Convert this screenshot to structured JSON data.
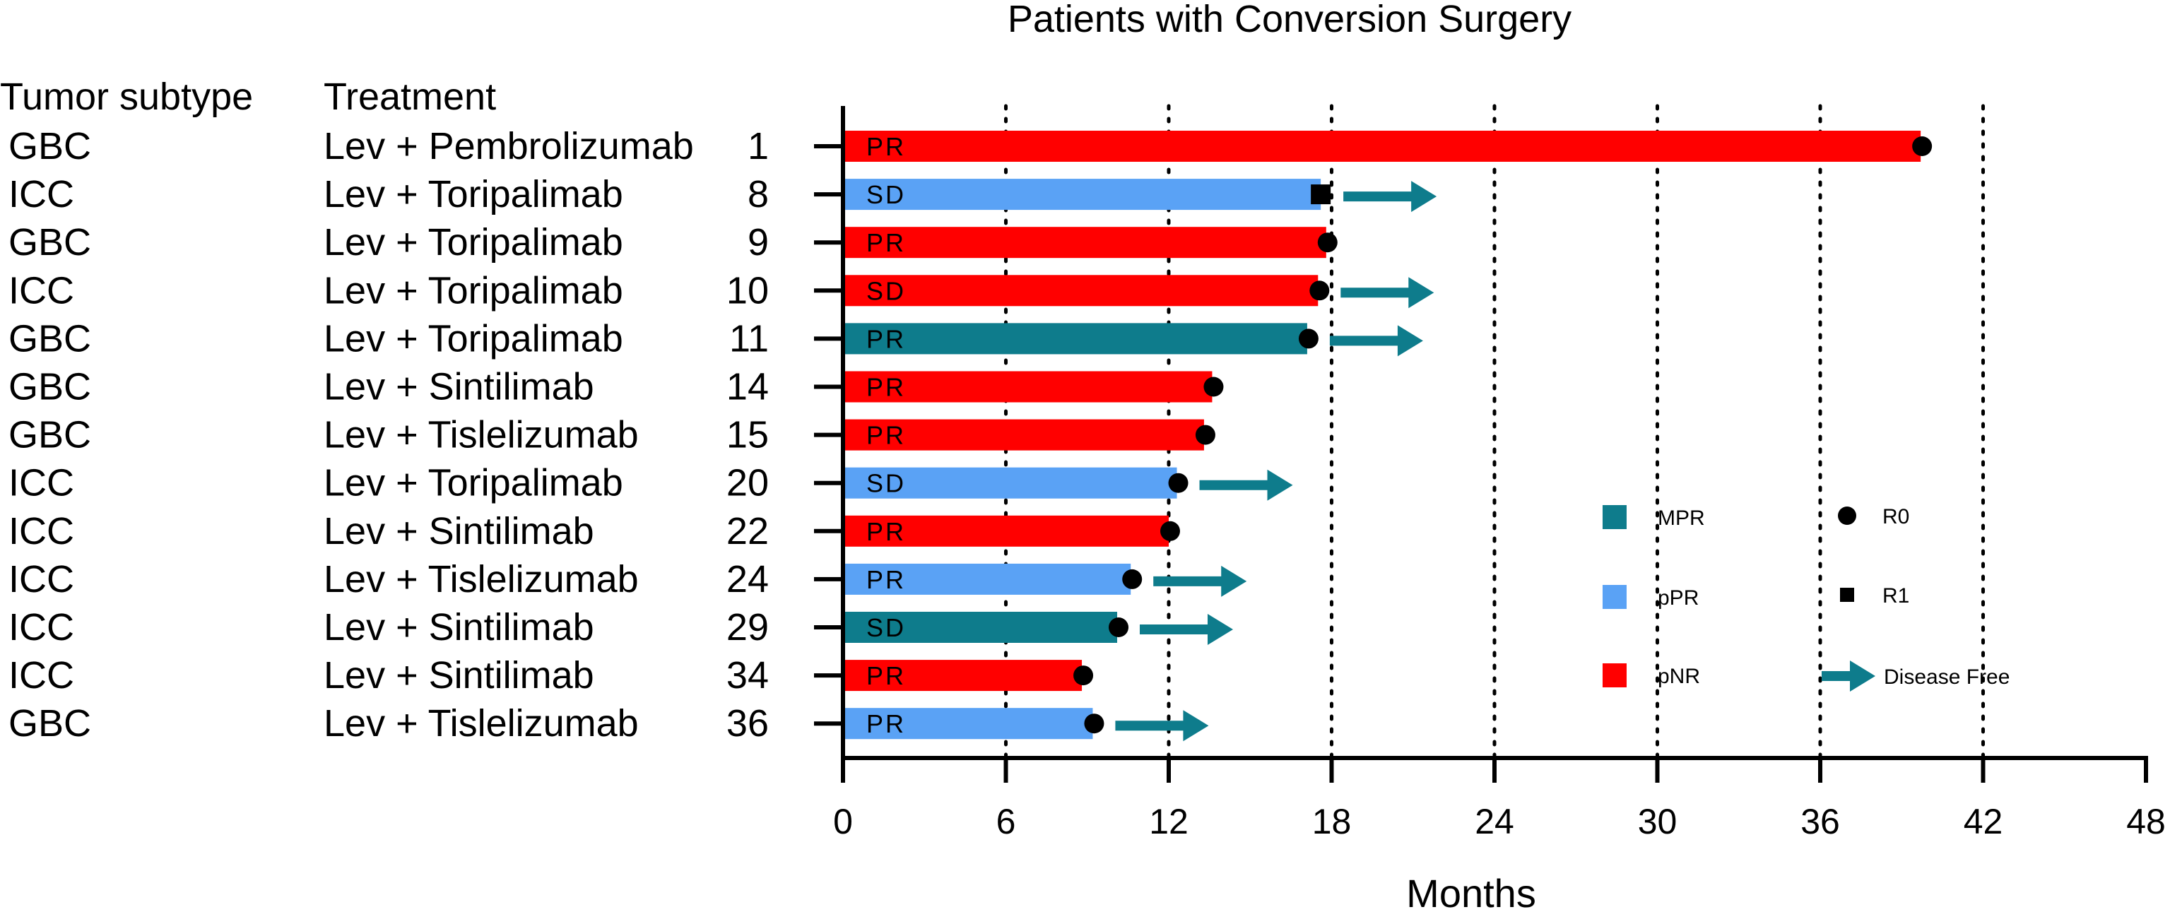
{
  "chart_data": {
    "type": "bar",
    "orientation": "horizontal",
    "title": "Patients with Conversion Surgery",
    "xlabel": "Months",
    "ylabel": "",
    "xlim": [
      0,
      48
    ],
    "xticks": [
      0,
      6,
      12,
      18,
      24,
      30,
      36,
      42,
      48
    ],
    "gridlines": [
      6,
      12,
      18,
      24,
      30,
      36,
      42
    ],
    "column_headers": {
      "subtype": "Tumor subtype",
      "treatment": "Treatment"
    },
    "colors": {
      "MPR": "#0e7c8c",
      "pPR": "#5aa2f5",
      "pNR": "#ff0000",
      "arrow": "#0e7c8c"
    },
    "patients": [
      {
        "id": "1",
        "subtype": "GBC",
        "treatment": "Lev + Pembrolizumab",
        "months": 39.7,
        "pathology": "pNR",
        "response": "PR",
        "resection": "R0",
        "disease_free": false
      },
      {
        "id": "8",
        "subtype": "ICC",
        "treatment": "Lev + Toripalimab",
        "months": 17.6,
        "pathology": "pPR",
        "response": "SD",
        "resection": "R1",
        "disease_free": true
      },
      {
        "id": "9",
        "subtype": "GBC",
        "treatment": "Lev + Toripalimab",
        "months": 17.8,
        "pathology": "pNR",
        "response": "PR",
        "resection": "R0",
        "disease_free": false
      },
      {
        "id": "10",
        "subtype": "ICC",
        "treatment": "Lev + Toripalimab",
        "months": 17.5,
        "pathology": "pNR",
        "response": "SD",
        "resection": "R0",
        "disease_free": true
      },
      {
        "id": "11",
        "subtype": "GBC",
        "treatment": "Lev + Toripalimab",
        "months": 17.1,
        "pathology": "MPR",
        "response": "PR",
        "resection": "R0",
        "disease_free": true
      },
      {
        "id": "14",
        "subtype": "GBC",
        "treatment": "Lev + Sintilimab",
        "months": 13.6,
        "pathology": "pNR",
        "response": "PR",
        "resection": "R0",
        "disease_free": false
      },
      {
        "id": "15",
        "subtype": "GBC",
        "treatment": "Lev + Tislelizumab",
        "months": 13.3,
        "pathology": "pNR",
        "response": "PR",
        "resection": "R0",
        "disease_free": false
      },
      {
        "id": "20",
        "subtype": "ICC",
        "treatment": "Lev + Toripalimab",
        "months": 12.3,
        "pathology": "pPR",
        "response": "SD",
        "resection": "R0",
        "disease_free": true
      },
      {
        "id": "22",
        "subtype": "ICC",
        "treatment": "Lev + Sintilimab",
        "months": 12.0,
        "pathology": "pNR",
        "response": "PR",
        "resection": "R0",
        "disease_free": false
      },
      {
        "id": "24",
        "subtype": "ICC",
        "treatment": "Lev + Tislelizumab",
        "months": 10.6,
        "pathology": "pPR",
        "response": "PR",
        "resection": "R0",
        "disease_free": true
      },
      {
        "id": "29",
        "subtype": "ICC",
        "treatment": "Lev + Sintilimab",
        "months": 10.1,
        "pathology": "MPR",
        "response": "SD",
        "resection": "R0",
        "disease_free": true
      },
      {
        "id": "34",
        "subtype": "ICC",
        "treatment": "Lev + Sintilimab",
        "months": 8.8,
        "pathology": "pNR",
        "response": "PR",
        "resection": "R0",
        "disease_free": false
      },
      {
        "id": "36",
        "subtype": "GBC",
        "treatment": "Lev + Tislelizumab",
        "months": 9.2,
        "pathology": "pPR",
        "response": "PR",
        "resection": "R0",
        "disease_free": true
      }
    ],
    "legend": {
      "bars": [
        {
          "key": "MPR",
          "label": "MPR"
        },
        {
          "key": "pPR",
          "label": "pPR"
        },
        {
          "key": "pNR",
          "label": "pNR"
        }
      ],
      "symbols": [
        {
          "key": "R0",
          "label": "R0"
        },
        {
          "key": "R1",
          "label": "R1"
        },
        {
          "key": "arrow",
          "label": "Disease Free"
        }
      ]
    }
  }
}
